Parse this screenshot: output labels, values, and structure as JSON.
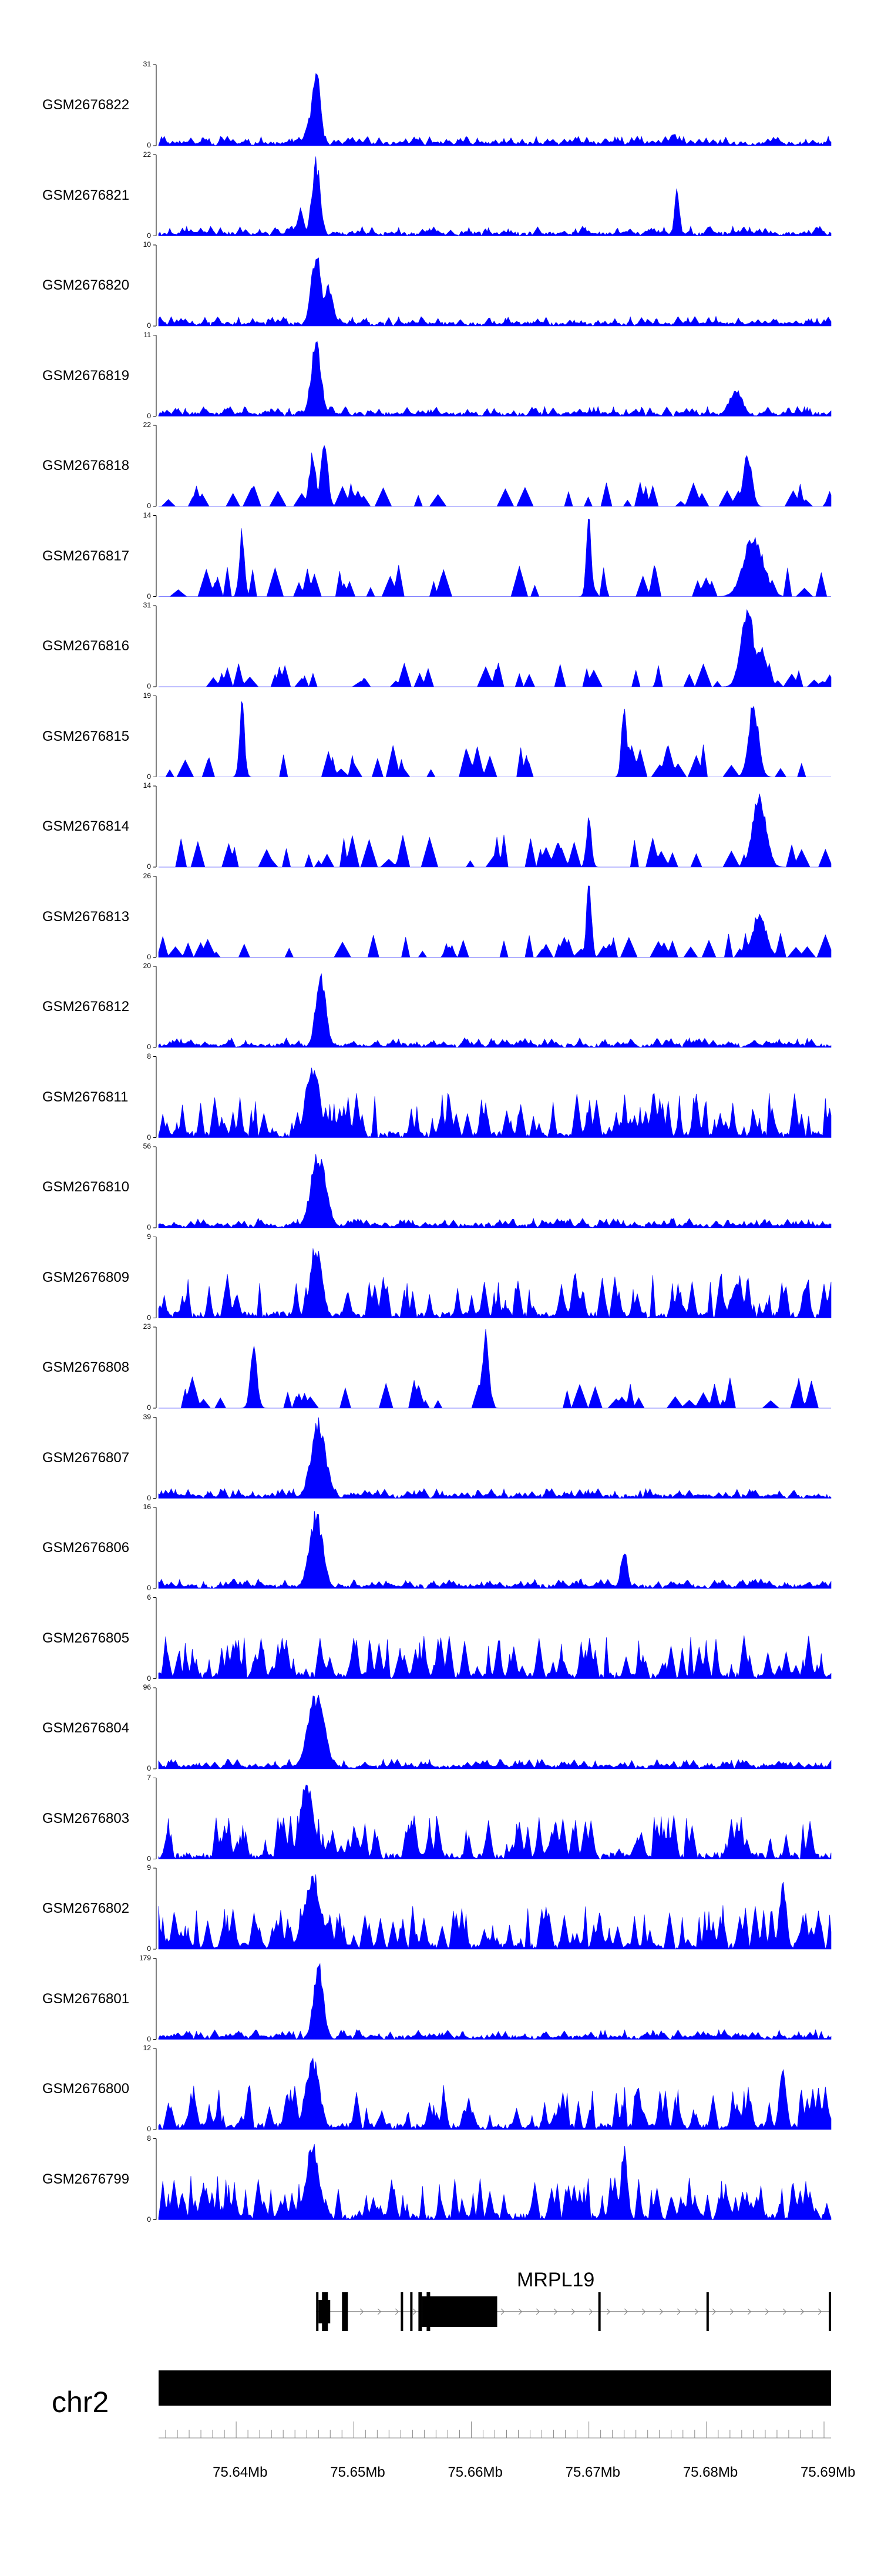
{
  "chart_data": {
    "type": "area",
    "title": "",
    "color": "#0000ff",
    "tracks": [
      {
        "name": "GSM2676822",
        "max": 31,
        "min": 0,
        "style": "dense",
        "seed": 11,
        "peaks": [
          [
            75.6468,
            1.0,
            0.0005
          ],
          [
            75.6465,
            0.45,
            0.0007
          ],
          [
            75.6772,
            0.18,
            0.0004
          ]
        ]
      },
      {
        "name": "GSM2676821",
        "max": 22,
        "min": 0,
        "style": "dense",
        "seed": 12,
        "peaks": [
          [
            75.6468,
            1.0,
            0.0005
          ],
          [
            75.6775,
            0.6,
            0.0003
          ],
          [
            75.6455,
            0.35,
            0.0004
          ]
        ]
      },
      {
        "name": "GSM2676820",
        "max": 10,
        "min": 0,
        "style": "dense",
        "seed": 13,
        "peaks": [
          [
            75.6468,
            1.0,
            0.0006
          ],
          [
            75.6478,
            0.55,
            0.0006
          ]
        ]
      },
      {
        "name": "GSM2676819",
        "max": 11,
        "min": 0,
        "style": "dense",
        "seed": 14,
        "peaks": [
          [
            75.6468,
            1.0,
            0.0006
          ],
          [
            75.6825,
            0.35,
            0.0008
          ]
        ]
      },
      {
        "name": "GSM2676818",
        "max": 22,
        "min": 0,
        "style": "sparse",
        "seed": 15,
        "peaks": [
          [
            75.6475,
            1.0,
            0.0004
          ],
          [
            75.6465,
            0.7,
            0.0004
          ],
          [
            75.6835,
            0.75,
            0.0005
          ]
        ]
      },
      {
        "name": "GSM2676817",
        "max": 14,
        "min": 0,
        "style": "spiky",
        "seed": 16,
        "peaks": [
          [
            75.67,
            1.0,
            0.0003
          ],
          [
            75.684,
            0.8,
            0.0012
          ],
          [
            75.6405,
            0.9,
            0.0003
          ]
        ]
      },
      {
        "name": "GSM2676816",
        "max": 31,
        "min": 0,
        "style": "sparse",
        "seed": 17,
        "peaks": [
          [
            75.6835,
            1.0,
            0.0008
          ],
          [
            75.6845,
            0.55,
            0.0008
          ]
        ]
      },
      {
        "name": "GSM2676815",
        "max": 19,
        "min": 0,
        "style": "spiky",
        "seed": 18,
        "peaks": [
          [
            75.684,
            1.0,
            0.0006
          ],
          [
            75.673,
            1.0,
            0.0003
          ],
          [
            75.6405,
            1.0,
            0.0003
          ]
        ]
      },
      {
        "name": "GSM2676814",
        "max": 14,
        "min": 0,
        "style": "spiky",
        "seed": 19,
        "peaks": [
          [
            75.6845,
            1.0,
            0.0008
          ],
          [
            75.67,
            0.7,
            0.0003
          ]
        ]
      },
      {
        "name": "GSM2676813",
        "max": 26,
        "min": 0,
        "style": "sparse",
        "seed": 20,
        "peaks": [
          [
            75.67,
            1.0,
            0.0003
          ],
          [
            75.6845,
            0.6,
            0.0008
          ]
        ]
      },
      {
        "name": "GSM2676812",
        "max": 20,
        "min": 0,
        "style": "dense",
        "seed": 21,
        "peaks": [
          [
            75.6472,
            1.0,
            0.0006
          ]
        ]
      },
      {
        "name": "GSM2676811",
        "max": 8,
        "min": 0,
        "style": "busy",
        "seed": 22,
        "peaks": [
          [
            75.6465,
            1.0,
            0.0008
          ]
        ]
      },
      {
        "name": "GSM2676810",
        "max": 56,
        "min": 0,
        "style": "dense",
        "seed": 23,
        "peaks": [
          [
            75.647,
            1.0,
            0.0009
          ]
        ]
      },
      {
        "name": "GSM2676809",
        "max": 9,
        "min": 0,
        "style": "busy",
        "seed": 24,
        "peaks": [
          [
            75.6468,
            1.0,
            0.0007
          ],
          [
            75.6825,
            0.45,
            0.0006
          ]
        ]
      },
      {
        "name": "GSM2676808",
        "max": 23,
        "min": 0,
        "style": "spiky",
        "seed": 25,
        "peaks": [
          [
            75.6612,
            1.0,
            0.0004
          ],
          [
            75.6415,
            0.8,
            0.0004
          ]
        ]
      },
      {
        "name": "GSM2676807",
        "max": 39,
        "min": 0,
        "style": "dense",
        "seed": 26,
        "peaks": [
          [
            75.647,
            1.0,
            0.0009
          ]
        ]
      },
      {
        "name": "GSM2676806",
        "max": 16,
        "min": 0,
        "style": "dense",
        "seed": 27,
        "peaks": [
          [
            75.6468,
            1.0,
            0.0008
          ],
          [
            75.673,
            0.5,
            0.0004
          ]
        ]
      },
      {
        "name": "GSM2676805",
        "max": 6,
        "min": 0,
        "style": "busy",
        "seed": 28,
        "peaks": []
      },
      {
        "name": "GSM2676804",
        "max": 96,
        "min": 0,
        "style": "dense",
        "seed": 29,
        "peaks": [
          [
            75.6468,
            1.0,
            0.001
          ]
        ]
      },
      {
        "name": "GSM2676803",
        "max": 7,
        "min": 0,
        "style": "busy",
        "seed": 30,
        "peaks": [
          [
            75.646,
            1.0,
            0.0008
          ]
        ]
      },
      {
        "name": "GSM2676802",
        "max": 9,
        "min": 0,
        "style": "busy",
        "seed": 31,
        "peaks": [
          [
            75.6465,
            1.0,
            0.001
          ],
          [
            75.6865,
            0.95,
            0.0004
          ]
        ]
      },
      {
        "name": "GSM2676801",
        "max": 179,
        "min": 0,
        "style": "dense",
        "seed": 32,
        "peaks": [
          [
            75.647,
            1.0,
            0.0006
          ]
        ]
      },
      {
        "name": "GSM2676800",
        "max": 12,
        "min": 0,
        "style": "busy",
        "seed": 33,
        "peaks": [
          [
            75.6465,
            1.0,
            0.0008
          ],
          [
            75.6865,
            0.9,
            0.0004
          ]
        ]
      },
      {
        "name": "GSM2676799",
        "max": 8,
        "min": 0,
        "style": "busy",
        "seed": 34,
        "peaks": [
          [
            75.6465,
            1.0,
            0.0008
          ],
          [
            75.673,
            0.95,
            0.0004
          ]
        ]
      }
    ],
    "gene": {
      "name": "MRPL19",
      "start": 75.6468,
      "end": 75.6906,
      "strand": "+",
      "exons": [
        [
          75.6468,
          75.647
        ],
        [
          75.6473,
          75.6478
        ],
        [
          75.649,
          75.6495
        ],
        [
          75.654,
          75.6542
        ],
        [
          75.6548,
          75.655
        ],
        [
          75.6555,
          75.6558
        ],
        [
          75.6562,
          75.6565
        ],
        [
          75.6558,
          75.6622
        ],
        [
          75.6708,
          75.671
        ],
        [
          75.68,
          75.6802
        ],
        [
          75.6904,
          75.6906
        ]
      ]
    },
    "chromosome": "chr2",
    "x_range": [
      75.6334,
      75.6906
    ],
    "x_ticks": [
      75.64,
      75.65,
      75.66,
      75.67,
      75.68,
      75.69
    ],
    "x_tick_labels": [
      "75.64Mb",
      "75.65Mb",
      "75.66Mb",
      "75.67Mb",
      "75.68Mb",
      "75.69Mb"
    ]
  }
}
